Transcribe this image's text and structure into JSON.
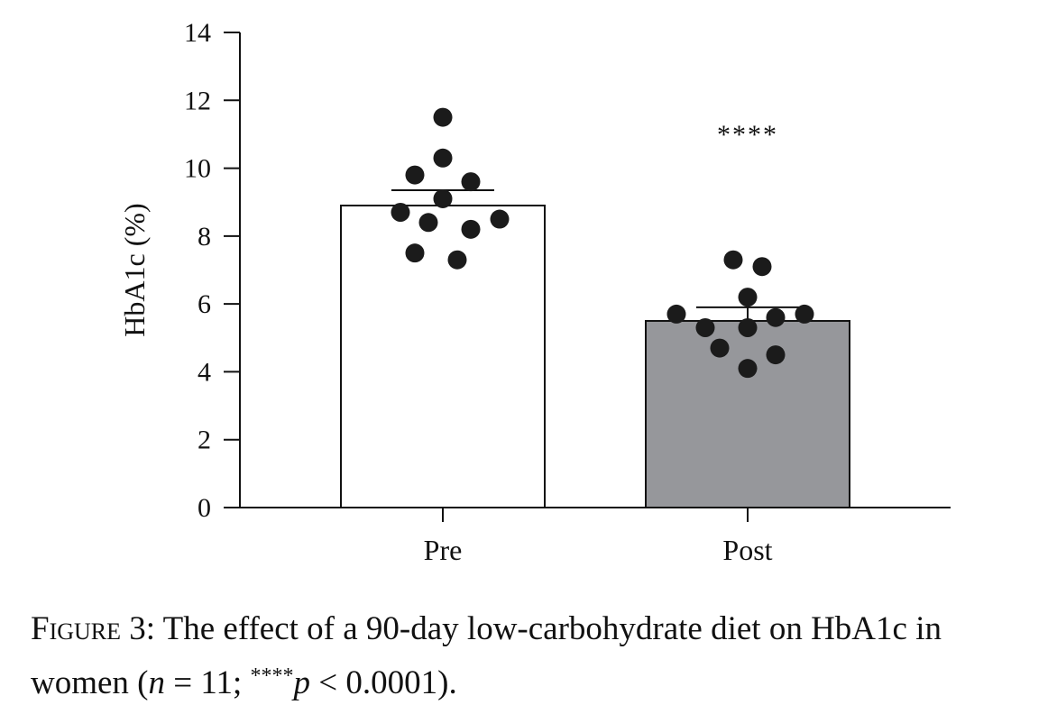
{
  "chart_data": {
    "type": "bar",
    "title": "",
    "xlabel": "",
    "ylabel": "HbA1c (%)",
    "ylim": [
      0,
      14
    ],
    "yticks": [
      0,
      2,
      4,
      6,
      8,
      10,
      12,
      14
    ],
    "ytick_labels": [
      "0",
      "2",
      "4",
      "6",
      "8",
      "10",
      "12",
      "14"
    ],
    "categories": [
      "Pre",
      "Post"
    ],
    "values": [
      8.9,
      5.5
    ],
    "error_upper": [
      9.35,
      5.9
    ],
    "bar_colors": [
      "#ffffff",
      "#96979b"
    ],
    "significance": [
      "",
      "****"
    ],
    "points": [
      [
        11.5,
        10.3,
        9.8,
        9.6,
        9.1,
        8.7,
        8.5,
        8.4,
        8.2,
        7.5,
        7.3
      ],
      [
        7.3,
        7.1,
        6.2,
        5.7,
        5.7,
        5.6,
        5.3,
        5.3,
        4.7,
        4.5,
        4.1
      ]
    ],
    "grid": false,
    "legend": "none"
  },
  "caption": {
    "label": "Figure 3:",
    "text_a": " The effect of a 90-day low-carbohydrate diet on HbA1c in women (",
    "n_symbol": "n",
    "n_text": " = 11; ",
    "stars": "****",
    "p_symbol": "p",
    "p_text": " < 0.0001)."
  }
}
